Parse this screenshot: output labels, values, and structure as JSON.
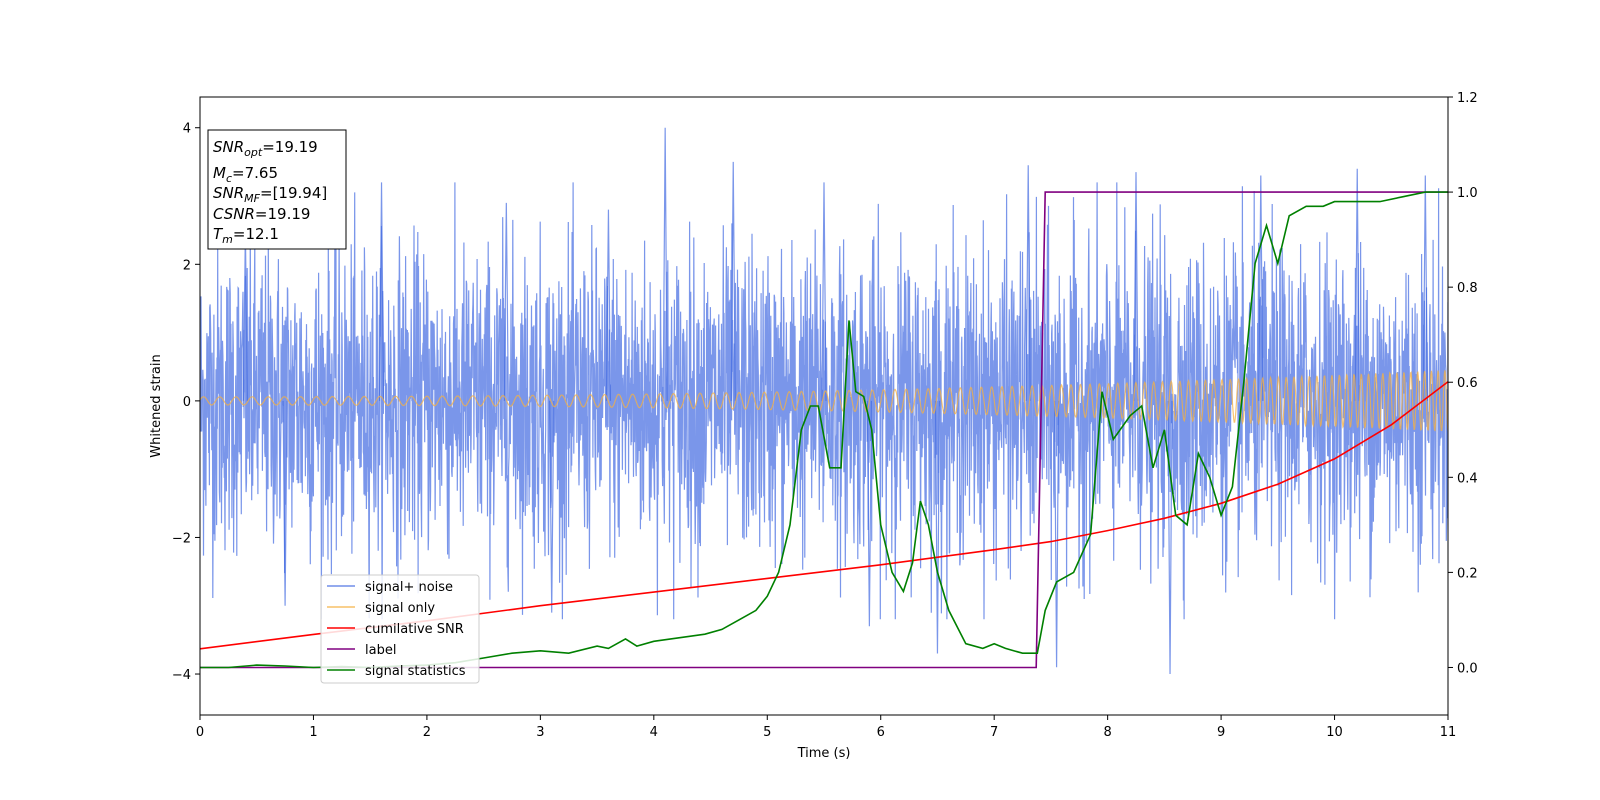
{
  "chart_data": {
    "type": "line",
    "xlabel": "Time (s)",
    "ylabel": "Whitened strain",
    "xlim": [
      0,
      11
    ],
    "ylim": [
      -4.6,
      4.45
    ],
    "y2lim": [
      -0.1,
      1.2
    ],
    "x_ticks": [
      "0",
      "1",
      "2",
      "3",
      "4",
      "5",
      "6",
      "7",
      "8",
      "9",
      "10",
      "11"
    ],
    "y_ticks": [
      "4",
      "2",
      "0",
      "−2",
      "−4"
    ],
    "y_tick_values": [
      4,
      2,
      0,
      -2,
      -4
    ],
    "y2_ticks": [
      "1.2",
      "1.0",
      "0.8",
      "0.6",
      "0.4",
      "0.2",
      "0.0"
    ],
    "y2_tick_values": [
      1.2,
      1.0,
      0.8,
      0.6,
      0.4,
      0.2,
      0.0
    ],
    "grid": false,
    "legend_position": "lower-left",
    "annotation": {
      "lines": [
        {
          "main": "SNR",
          "sub": "opt",
          "rest": "=19.19"
        },
        {
          "main": "M",
          "sub": "c",
          "rest": "=7.65"
        },
        {
          "main": "SNR",
          "sub": "MF",
          "rest": "=[19.94]"
        },
        {
          "main": "CSNR",
          "sub": "",
          "rest": "=19.19"
        },
        {
          "main": "T",
          "sub": "m",
          "rest": "=12.1"
        }
      ]
    },
    "series": [
      {
        "name": "signal+ noise",
        "axis": "left",
        "color": "#4169e1",
        "kind": "noise",
        "envelope": {
          "x": [
            0,
            11
          ],
          "typical_amplitude": 1.1,
          "max_positive": 4.0,
          "max_negative": -3.9
        },
        "peaks": [
          {
            "x": 0.4,
            "y": 2.5
          },
          {
            "x": 0.75,
            "y": -3.0
          },
          {
            "x": 1.6,
            "y": 3.2
          },
          {
            "x": 2.7,
            "y": 2.9
          },
          {
            "x": 3.1,
            "y": -3.1
          },
          {
            "x": 3.6,
            "y": 2.8
          },
          {
            "x": 4.1,
            "y": 4.0
          },
          {
            "x": 4.7,
            "y": 3.5
          },
          {
            "x": 5.5,
            "y": 3.2
          },
          {
            "x": 5.9,
            "y": -3.3
          },
          {
            "x": 6.5,
            "y": -3.7
          },
          {
            "x": 7.3,
            "y": 3.45
          },
          {
            "x": 7.55,
            "y": -3.9
          },
          {
            "x": 8.25,
            "y": 3.35
          },
          {
            "x": 8.55,
            "y": -4.0
          },
          {
            "x": 9.35,
            "y": 3.3
          },
          {
            "x": 10.2,
            "y": 3.4
          },
          {
            "x": 10.8,
            "y": 3.3
          }
        ]
      },
      {
        "name": "signal only",
        "axis": "left",
        "color": "#f5b041",
        "kind": "chirp",
        "amplitude_start": 0.06,
        "amplitude_end": 0.45
      },
      {
        "name": "cumilative SNR",
        "axis": "left",
        "color": "#ff0000",
        "kind": "line",
        "x": [
          0,
          1,
          2,
          3,
          4,
          5,
          6,
          7,
          7.5,
          8,
          8.5,
          9,
          9.5,
          10,
          10.5,
          11
        ],
        "y": [
          -3.63,
          -3.42,
          -3.22,
          -3.0,
          -2.8,
          -2.6,
          -2.4,
          -2.18,
          -2.06,
          -1.9,
          -1.72,
          -1.5,
          -1.22,
          -0.85,
          -0.35,
          0.28
        ]
      },
      {
        "name": "label",
        "axis": "right",
        "color": "#800080",
        "kind": "line",
        "x": [
          0,
          7.37,
          7.45,
          11
        ],
        "y": [
          0.0,
          0.0,
          1.0,
          1.0
        ]
      },
      {
        "name": "signal statistics",
        "axis": "right",
        "color": "#008000",
        "kind": "line",
        "x": [
          0,
          0.25,
          0.5,
          0.75,
          1.0,
          1.25,
          1.5,
          1.75,
          2.0,
          2.25,
          2.5,
          2.75,
          3.0,
          3.25,
          3.5,
          3.6,
          3.75,
          3.85,
          4.0,
          4.15,
          4.3,
          4.45,
          4.6,
          4.75,
          4.9,
          5.0,
          5.1,
          5.2,
          5.3,
          5.38,
          5.45,
          5.55,
          5.65,
          5.72,
          5.78,
          5.85,
          5.92,
          6.0,
          6.1,
          6.2,
          6.28,
          6.35,
          6.42,
          6.5,
          6.6,
          6.75,
          6.9,
          7.0,
          7.1,
          7.25,
          7.38,
          7.45,
          7.55,
          7.7,
          7.85,
          7.95,
          8.05,
          8.2,
          8.3,
          8.4,
          8.5,
          8.6,
          8.7,
          8.8,
          8.9,
          9.0,
          9.1,
          9.2,
          9.3,
          9.4,
          9.5,
          9.6,
          9.75,
          9.9,
          10.0,
          10.2,
          10.4,
          10.6,
          10.8,
          11.0
        ],
        "y": [
          0.0,
          0.0,
          0.005,
          0.003,
          0.0,
          0.002,
          0.0,
          0.003,
          0.005,
          0.01,
          0.02,
          0.03,
          0.035,
          0.03,
          0.045,
          0.04,
          0.06,
          0.045,
          0.055,
          0.06,
          0.065,
          0.07,
          0.08,
          0.1,
          0.12,
          0.15,
          0.2,
          0.3,
          0.5,
          0.55,
          0.55,
          0.42,
          0.42,
          0.73,
          0.58,
          0.57,
          0.5,
          0.3,
          0.2,
          0.16,
          0.22,
          0.35,
          0.3,
          0.2,
          0.12,
          0.05,
          0.04,
          0.05,
          0.04,
          0.03,
          0.03,
          0.12,
          0.18,
          0.2,
          0.28,
          0.58,
          0.48,
          0.53,
          0.55,
          0.42,
          0.5,
          0.32,
          0.3,
          0.45,
          0.4,
          0.32,
          0.38,
          0.6,
          0.85,
          0.93,
          0.85,
          0.95,
          0.97,
          0.97,
          0.98,
          0.98,
          0.98,
          0.99,
          1.0,
          1.0
        ]
      }
    ]
  }
}
